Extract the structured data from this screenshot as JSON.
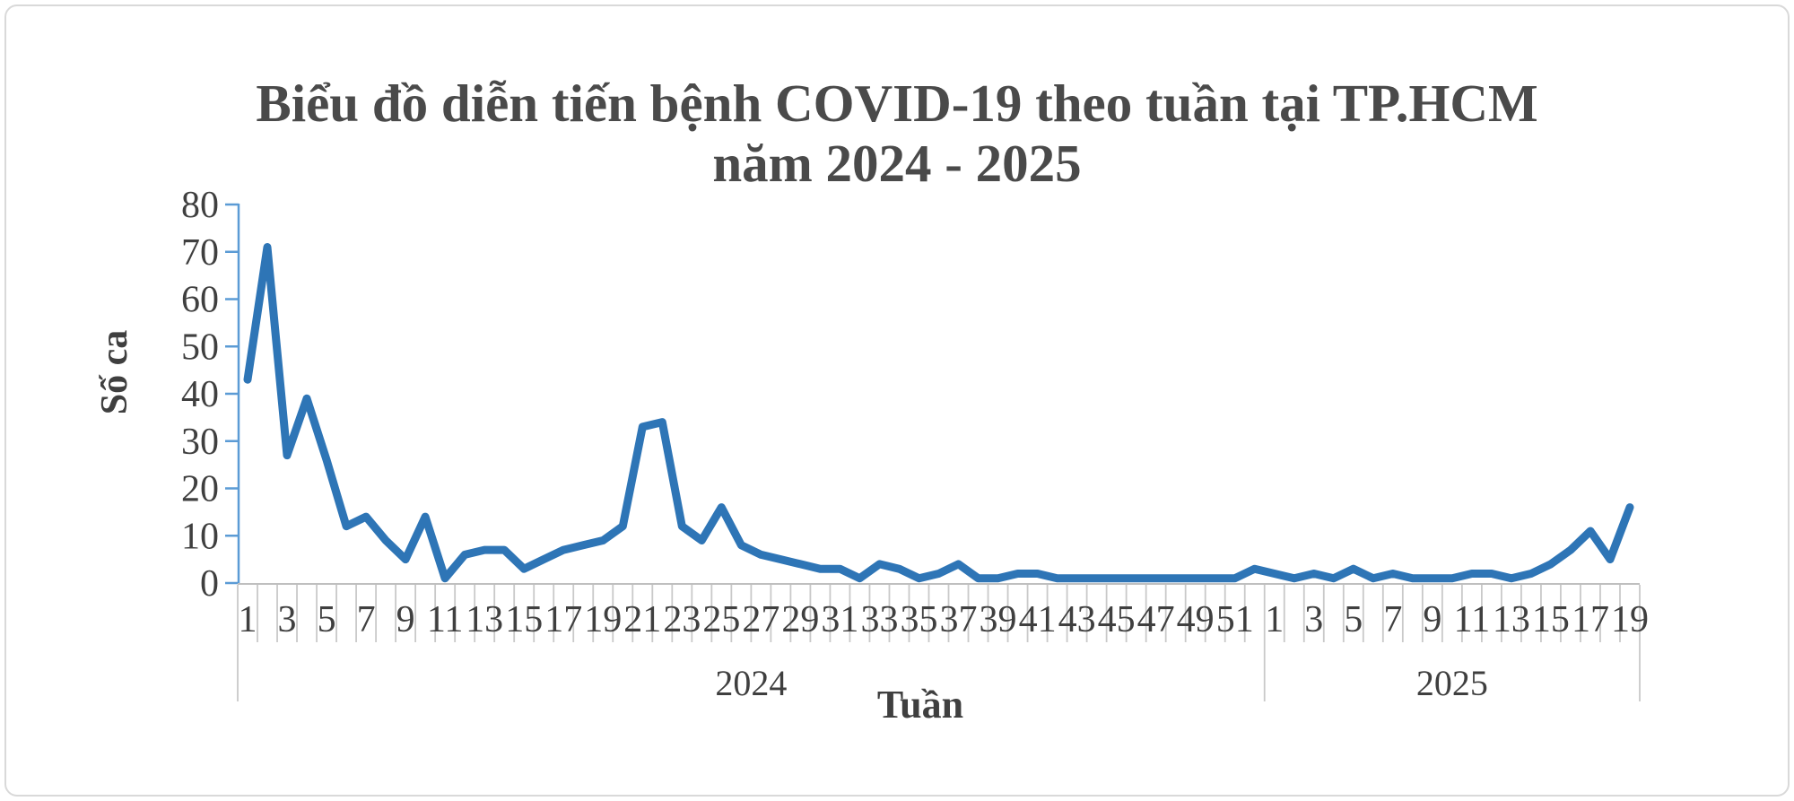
{
  "chart_title": {
    "line1": "Biểu đồ diễn tiến bệnh COVID-19 theo tuần tại TP.HCM",
    "line2": "năm 2024 - 2025"
  },
  "axes": {
    "y_title": "Số ca",
    "x_title": "Tuần"
  },
  "colors": {
    "line": "#2e75b6",
    "y_axis": "#5b9bd5",
    "grid": "#c9c9c9",
    "axis_line": "#bfbfbf",
    "text": "#3f3f3f",
    "title_text": "#4a4a4a",
    "border": "#d9d9d9"
  },
  "chart_data": {
    "type": "line",
    "title": "Biểu đồ diễn tiến bệnh COVID-19 theo tuần tại TP.HCM năm 2024 - 2025",
    "xlabel": "Tuần",
    "ylabel": "Số ca",
    "ylim": [
      0,
      80
    ],
    "ytick_step": 10,
    "ytick_labels": [
      "0",
      "10",
      "20",
      "30",
      "40",
      "50",
      "60",
      "70",
      "80"
    ],
    "grid": false,
    "legend": false,
    "x_axis_style": "two-tier category axis: weekly cells with odd weeks labeled, year cells below",
    "groups": [
      {
        "year": "2024",
        "tick_labels": [
          "1",
          "3",
          "5",
          "7",
          "9",
          "11",
          "13",
          "15",
          "17",
          "19",
          "21",
          "23",
          "25",
          "27",
          "29",
          "31",
          "33",
          "35",
          "37",
          "39",
          "41",
          "43",
          "45",
          "47",
          "49",
          "51"
        ],
        "values": [
          43,
          71,
          27,
          39,
          26,
          12,
          14,
          9,
          5,
          14,
          1,
          6,
          7,
          7,
          3,
          5,
          7,
          8,
          9,
          12,
          33,
          34,
          12,
          9,
          16,
          8,
          6,
          5,
          4,
          3,
          3,
          1,
          4,
          3,
          1,
          2,
          4,
          1,
          1,
          2,
          2,
          1,
          1,
          1,
          1,
          1,
          1,
          1,
          1,
          1,
          1,
          3
        ]
      },
      {
        "year": "2025",
        "tick_labels": [
          "1",
          "3",
          "5",
          "7",
          "9",
          "11",
          "13",
          "15",
          "17",
          "19"
        ],
        "values": [
          2,
          1,
          2,
          1,
          3,
          1,
          2,
          1,
          1,
          1,
          2,
          2,
          1,
          2,
          4,
          7,
          11,
          5,
          16
        ]
      }
    ]
  }
}
